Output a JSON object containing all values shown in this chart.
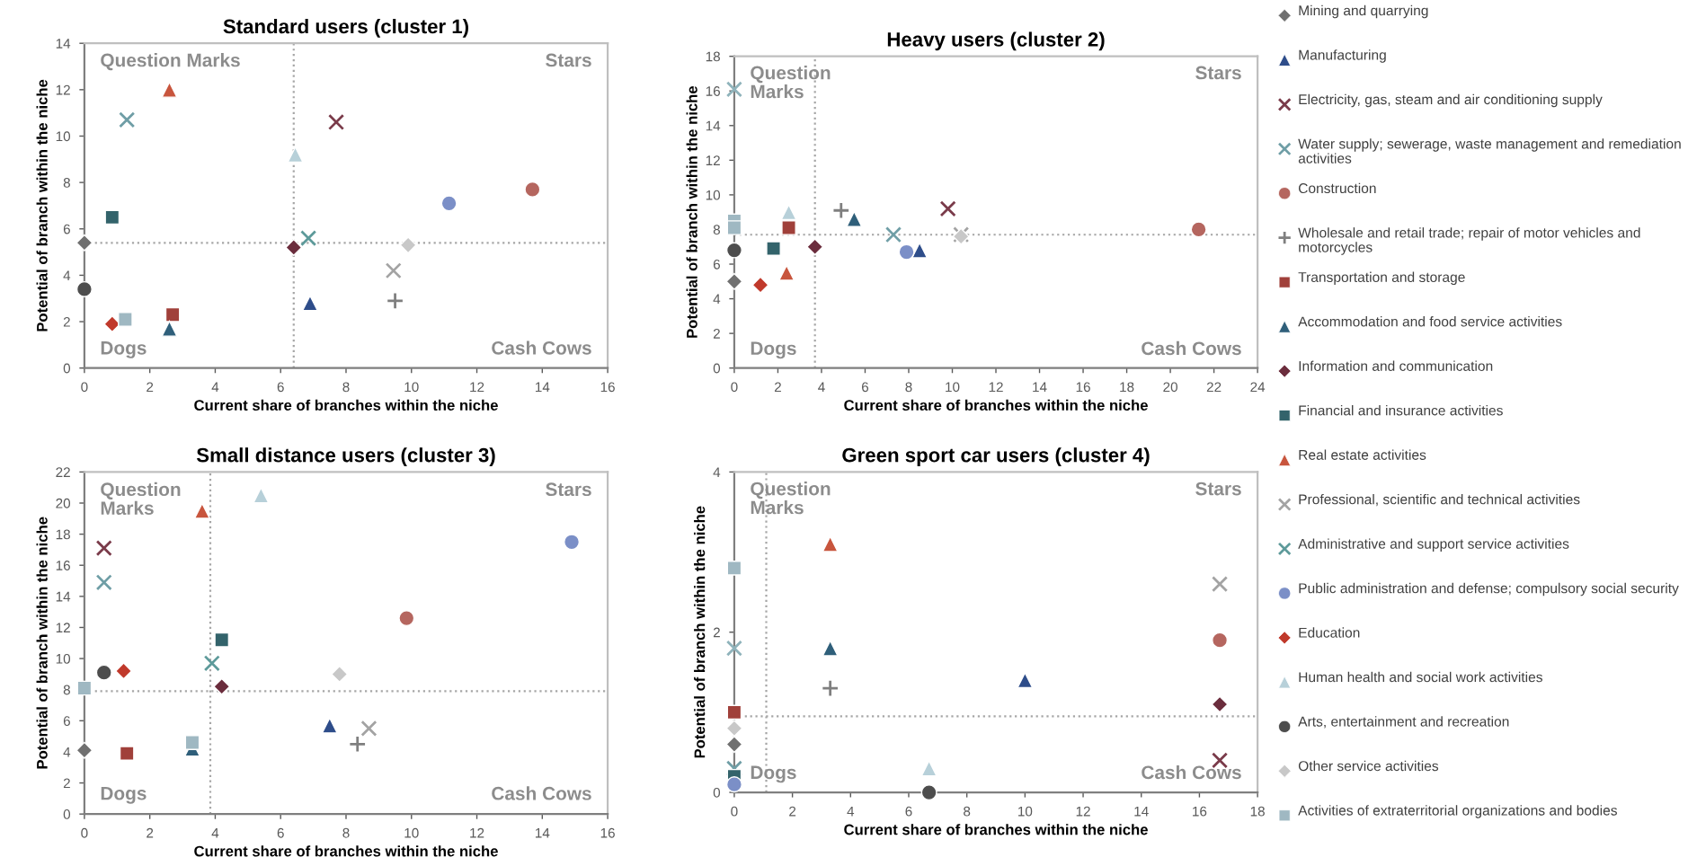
{
  "chart_data": [
    {
      "type": "scatter",
      "title": "Standard users (cluster 1)",
      "xlabel": "Current share of branches within the niche",
      "ylabel": "Potential of branch within the niche",
      "xlim": [
        0,
        16
      ],
      "ylim": [
        0,
        14
      ],
      "xticks": [
        0,
        2,
        4,
        6,
        8,
        10,
        12,
        14,
        16
      ],
      "yticks": [
        0,
        2,
        4,
        6,
        8,
        10,
        12,
        14
      ],
      "grid": false,
      "legend": "right",
      "ref_lines": [
        {
          "axis": "x",
          "value": 6.4,
          "line_style": "dotted",
          "color": "#a6a6a6"
        },
        {
          "axis": "y",
          "value": 5.4,
          "line_style": "dotted",
          "color": "#a6a6a6"
        }
      ],
      "annotations": [
        "Question Marks",
        "Stars",
        "Dogs",
        "Cash Cows"
      ],
      "series": [
        {
          "name": "Mining and quarrying",
          "color": "#707070",
          "marker": "diamond",
          "x": [
            0
          ],
          "values": [
            5.4
          ]
        },
        {
          "name": "Manufacturing",
          "color": "#2e4d8a",
          "marker": "triangle",
          "x": [
            6.9
          ],
          "values": [
            2.8
          ]
        },
        {
          "name": "Electricity, gas, steam and air conditioning supply",
          "color": "#7a3b4a",
          "marker": "cross",
          "x": [
            7.7
          ],
          "values": [
            10.6
          ]
        },
        {
          "name": "Water supply; sewerage, waste management and remediation activities",
          "color": "#6f9ea6",
          "marker": "cross",
          "x": [
            1.3
          ],
          "values": [
            10.7
          ]
        },
        {
          "name": "Construction",
          "color": "#b5665f",
          "marker": "circle",
          "x": [
            13.7
          ],
          "values": [
            7.7
          ]
        },
        {
          "name": "Wholesale and retail trade; repair of motor vehicles and motorcycles",
          "color": "#7f7f7f",
          "marker": "plus",
          "x": [
            9.5
          ],
          "values": [
            2.9
          ]
        },
        {
          "name": "Transportation and storage",
          "color": "#a0403a",
          "marker": "square",
          "x": [
            2.7
          ],
          "values": [
            2.3
          ]
        },
        {
          "name": "Accommodation and food service activities",
          "color": "#2f5f7a",
          "marker": "triangle",
          "x": [
            2.6
          ],
          "values": [
            1.7
          ]
        },
        {
          "name": "Information and communication",
          "color": "#6b2d3d",
          "marker": "diamond",
          "x": [
            6.4
          ],
          "values": [
            5.2
          ]
        },
        {
          "name": "Financial and insurance activities",
          "color": "#33636b",
          "marker": "square",
          "x": [
            0.85
          ],
          "values": [
            6.5
          ]
        },
        {
          "name": "Real estate activities",
          "color": "#c8553d",
          "marker": "triangle",
          "x": [
            2.6
          ],
          "values": [
            12.0
          ]
        },
        {
          "name": "Professional, scientific and technical activities",
          "color": "#a3a3a3",
          "marker": "cross",
          "x": [
            9.45
          ],
          "values": [
            4.2
          ]
        },
        {
          "name": "Administrative and support service activities",
          "color": "#5d9a9a",
          "marker": "cross",
          "x": [
            6.85
          ],
          "values": [
            5.6
          ]
        },
        {
          "name": "Public administration and defense; compulsory social security",
          "color": "#7b8fc7",
          "marker": "circle",
          "x": [
            11.15
          ],
          "values": [
            7.1
          ]
        },
        {
          "name": "Education",
          "color": "#c0392b",
          "marker": "diamond",
          "x": [
            0.85
          ],
          "values": [
            1.9
          ]
        },
        {
          "name": "Human health and social work activities",
          "color": "#b7d0d9",
          "marker": "triangle",
          "x": [
            6.45
          ],
          "values": [
            9.2
          ]
        },
        {
          "name": "Arts, entertainment and recreation",
          "color": "#4d4d4d",
          "marker": "circle",
          "x": [
            0
          ],
          "values": [
            3.4
          ]
        },
        {
          "name": "Other service activities",
          "color": "#c8c8c8",
          "marker": "diamond",
          "x": [
            9.9
          ],
          "values": [
            5.3
          ]
        },
        {
          "name": "Activities of extraterritorial organizations and bodies",
          "color": "#9fb8c2",
          "marker": "square",
          "x": [
            1.25
          ],
          "values": [
            2.1
          ]
        }
      ]
    },
    {
      "type": "scatter",
      "title": "Heavy users (cluster 2)",
      "xlabel": "Current share of branches within the niche",
      "ylabel": "Potential of branch within the niche",
      "xlim": [
        0,
        24
      ],
      "ylim": [
        0,
        18
      ],
      "xticks": [
        0,
        2,
        4,
        6,
        8,
        10,
        12,
        14,
        16,
        18,
        20,
        22,
        24
      ],
      "yticks": [
        0,
        2,
        4,
        6,
        8,
        10,
        12,
        14,
        16,
        18
      ],
      "grid": false,
      "ref_lines": [
        {
          "axis": "x",
          "value": 3.7,
          "line_style": "dotted",
          "color": "#a6a6a6"
        },
        {
          "axis": "y",
          "value": 7.7,
          "line_style": "dotted",
          "color": "#a6a6a6"
        }
      ],
      "annotations": [
        "Question\nMarks",
        "Stars",
        "Dogs",
        "Cash Cows"
      ],
      "series": [
        {
          "color": "#707070",
          "marker": "diamond",
          "x": [
            0
          ],
          "values": [
            5.0
          ]
        },
        {
          "color": "#2e4d8a",
          "marker": "triangle",
          "x": [
            8.5
          ],
          "values": [
            6.8
          ]
        },
        {
          "color": "#7a3b4a",
          "marker": "cross",
          "x": [
            9.8
          ],
          "values": [
            9.2
          ]
        },
        {
          "color": "#6f9ea6",
          "marker": "cross",
          "x": [
            7.3
          ],
          "values": [
            7.7
          ]
        },
        {
          "color": "#b5665f",
          "marker": "circle",
          "x": [
            21.3
          ],
          "values": [
            8.0
          ]
        },
        {
          "color": "#7f7f7f",
          "marker": "plus",
          "x": [
            4.9
          ],
          "values": [
            9.1
          ]
        },
        {
          "color": "#a0403a",
          "marker": "square",
          "x": [
            2.5
          ],
          "values": [
            8.1
          ]
        },
        {
          "color": "#2f5f7a",
          "marker": "triangle",
          "x": [
            5.5
          ],
          "values": [
            8.6
          ]
        },
        {
          "color": "#6b2d3d",
          "marker": "diamond",
          "x": [
            3.7
          ],
          "values": [
            7.0
          ]
        },
        {
          "color": "#33636b",
          "marker": "square",
          "x": [
            1.8
          ],
          "values": [
            6.9
          ]
        },
        {
          "color": "#c8553d",
          "marker": "triangle",
          "x": [
            2.4
          ],
          "values": [
            5.5
          ]
        },
        {
          "color": "#a3a3a3",
          "marker": "cross",
          "x": [
            10.4
          ],
          "values": [
            7.7
          ]
        },
        {
          "color": "#8fb3bb",
          "marker": "cross",
          "x": [
            0
          ],
          "values": [
            16.1
          ]
        },
        {
          "color": "#7b8fc7",
          "marker": "circle",
          "x": [
            7.9
          ],
          "values": [
            6.7
          ]
        },
        {
          "color": "#c0392b",
          "marker": "diamond",
          "x": [
            1.2
          ],
          "values": [
            4.8
          ]
        },
        {
          "color": "#b7d0d9",
          "marker": "triangle",
          "x": [
            2.5
          ],
          "values": [
            9.0
          ]
        },
        {
          "color": "#4d4d4d",
          "marker": "circle",
          "x": [
            0
          ],
          "values": [
            6.8
          ]
        },
        {
          "color": "#c8c8c8",
          "marker": "diamond",
          "x": [
            10.4
          ],
          "values": [
            7.6
          ]
        },
        {
          "color": "#9fb8c2",
          "marker": "square",
          "x": [
            0,
            0
          ],
          "values": [
            8.5,
            8.1
          ]
        }
      ]
    },
    {
      "type": "scatter",
      "title": "Small distance users (cluster 3)",
      "xlabel": "Current share of branches within the niche",
      "ylabel": "Potential of branch within the niche",
      "xlim": [
        0,
        16
      ],
      "ylim": [
        0,
        22
      ],
      "xticks": [
        0,
        2,
        4,
        6,
        8,
        10,
        12,
        14,
        16
      ],
      "yticks": [
        0,
        2,
        4,
        6,
        8,
        10,
        12,
        14,
        16,
        18,
        20,
        22
      ],
      "grid": false,
      "ref_lines": [
        {
          "axis": "x",
          "value": 3.85,
          "line_style": "dotted",
          "color": "#a6a6a6"
        },
        {
          "axis": "y",
          "value": 7.9,
          "line_style": "dotted",
          "color": "#a6a6a6"
        }
      ],
      "annotations": [
        "Question\nMarks",
        "Stars",
        "Dogs",
        "Cash Cows"
      ],
      "series": [
        {
          "color": "#707070",
          "marker": "diamond",
          "x": [
            0
          ],
          "values": [
            4.1
          ]
        },
        {
          "color": "#2e4d8a",
          "marker": "triangle",
          "x": [
            7.5
          ],
          "values": [
            5.7
          ]
        },
        {
          "color": "#7a3b4a",
          "marker": "cross",
          "x": [
            0.6
          ],
          "values": [
            17.1
          ]
        },
        {
          "color": "#6f9ea6",
          "marker": "cross",
          "x": [
            0.6
          ],
          "values": [
            14.9
          ]
        },
        {
          "color": "#b5665f",
          "marker": "circle",
          "x": [
            9.85
          ],
          "values": [
            12.6
          ]
        },
        {
          "color": "#7f7f7f",
          "marker": "plus",
          "x": [
            8.35
          ],
          "values": [
            4.5
          ]
        },
        {
          "color": "#a0403a",
          "marker": "square",
          "x": [
            1.3
          ],
          "values": [
            3.9
          ]
        },
        {
          "color": "#2f5f7a",
          "marker": "triangle",
          "x": [
            3.3
          ],
          "values": [
            4.2
          ]
        },
        {
          "color": "#6b2d3d",
          "marker": "diamond",
          "x": [
            4.2
          ],
          "values": [
            8.2
          ]
        },
        {
          "color": "#33636b",
          "marker": "square",
          "x": [
            4.2
          ],
          "values": [
            11.2
          ]
        },
        {
          "color": "#c8553d",
          "marker": "triangle",
          "x": [
            3.6
          ],
          "values": [
            19.5
          ]
        },
        {
          "color": "#a3a3a3",
          "marker": "cross",
          "x": [
            8.7
          ],
          "values": [
            5.5
          ]
        },
        {
          "color": "#5d9a9a",
          "marker": "cross",
          "x": [
            3.9
          ],
          "values": [
            9.7
          ]
        },
        {
          "color": "#7b8fc7",
          "marker": "circle",
          "x": [
            14.9
          ],
          "values": [
            17.5
          ]
        },
        {
          "color": "#c0392b",
          "marker": "diamond",
          "x": [
            1.2
          ],
          "values": [
            9.2
          ]
        },
        {
          "color": "#b7d0d9",
          "marker": "triangle",
          "x": [
            5.4
          ],
          "values": [
            20.5
          ]
        },
        {
          "color": "#4d4d4d",
          "marker": "circle",
          "x": [
            0.6
          ],
          "values": [
            9.1
          ]
        },
        {
          "color": "#c8c8c8",
          "marker": "diamond",
          "x": [
            7.8
          ],
          "values": [
            9.0
          ]
        },
        {
          "color": "#9fb8c2",
          "marker": "square",
          "x": [
            0,
            3.3
          ],
          "values": [
            8.1,
            4.6
          ]
        }
      ]
    },
    {
      "type": "scatter",
      "title": "Green sport car users (cluster 4)",
      "xlabel": "Current share of branches within the niche",
      "ylabel": "Potential of branch within the niche",
      "xlim": [
        0,
        18
      ],
      "ylim": [
        0,
        4
      ],
      "xticks": [
        0,
        2,
        4,
        6,
        8,
        10,
        12,
        14,
        16,
        18
      ],
      "yticks": [
        0,
        2,
        4
      ],
      "grid": false,
      "ref_lines": [
        {
          "axis": "x",
          "value": 1.1,
          "line_style": "dotted",
          "color": "#a6a6a6"
        },
        {
          "axis": "y",
          "value": 0.95,
          "line_style": "dotted",
          "color": "#a6a6a6"
        }
      ],
      "annotations": [
        "Question\nMarks",
        "Stars",
        "Dogs",
        "Cash Cows"
      ],
      "series": [
        {
          "color": "#707070",
          "marker": "diamond",
          "x": [
            0
          ],
          "values": [
            0.6
          ]
        },
        {
          "color": "#2e4d8a",
          "marker": "triangle",
          "x": [
            10
          ],
          "values": [
            1.4
          ]
        },
        {
          "color": "#7a3b4a",
          "marker": "cross",
          "x": [
            16.7
          ],
          "values": [
            0.4
          ]
        },
        {
          "color": "#6f9ea6",
          "marker": "cross",
          "x": [
            0
          ],
          "values": [
            0.3
          ]
        },
        {
          "color": "#b5665f",
          "marker": "circle",
          "x": [
            16.7
          ],
          "values": [
            1.9
          ]
        },
        {
          "color": "#7f7f7f",
          "marker": "plus",
          "x": [
            3.3
          ],
          "values": [
            1.3
          ]
        },
        {
          "color": "#a0403a",
          "marker": "square",
          "x": [
            0
          ],
          "values": [
            1.0
          ]
        },
        {
          "color": "#2f5f7a",
          "marker": "triangle",
          "x": [
            3.3
          ],
          "values": [
            1.8
          ]
        },
        {
          "color": "#6b2d3d",
          "marker": "diamond",
          "x": [
            16.7
          ],
          "values": [
            1.1
          ]
        },
        {
          "color": "#33636b",
          "marker": "square",
          "x": [
            0
          ],
          "values": [
            0.2
          ]
        },
        {
          "color": "#c8553d",
          "marker": "triangle",
          "x": [
            3.3
          ],
          "values": [
            3.1
          ]
        },
        {
          "color": "#a3a3a3",
          "marker": "cross",
          "x": [
            16.7
          ],
          "values": [
            2.6
          ]
        },
        {
          "color": "#8fb3bb",
          "marker": "cross",
          "x": [
            0
          ],
          "values": [
            1.8
          ]
        },
        {
          "color": "#7b8fc7",
          "marker": "circle",
          "x": [
            0
          ],
          "values": [
            0.1
          ]
        },
        {
          "color": "#b7d0d9",
          "marker": "triangle",
          "x": [
            6.7
          ],
          "values": [
            0.3
          ]
        },
        {
          "color": "#4d4d4d",
          "marker": "circle",
          "x": [
            6.7
          ],
          "values": [
            0.0
          ]
        },
        {
          "color": "#c8c8c8",
          "marker": "diamond",
          "x": [
            0
          ],
          "values": [
            0.8
          ]
        },
        {
          "color": "#9fb8c2",
          "marker": "square",
          "x": [
            0
          ],
          "values": [
            2.8
          ]
        }
      ]
    }
  ]
}
